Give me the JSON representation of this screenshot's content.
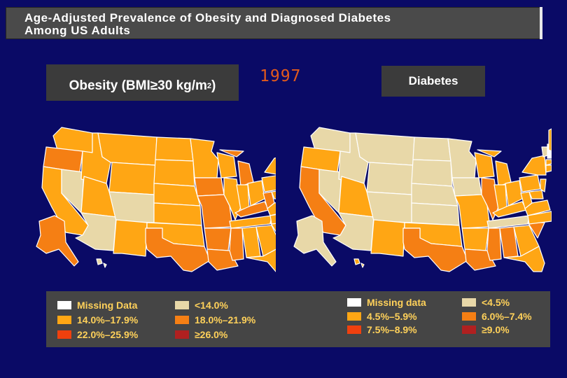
{
  "title": {
    "line1": "Age-Adjusted Prevalence of Obesity and Diagnosed Diabetes",
    "line2": "Among US Adults"
  },
  "year": "1997",
  "obesity_panel": {
    "label_prefix": "Obesity (BMI≥30 kg/m",
    "label_sup": "2",
    "label_suffix": ")",
    "legend": [
      {
        "label": "Missing Data",
        "color": "#ffffff"
      },
      {
        "label": "<14.0%",
        "color": "#e8d8a8"
      },
      {
        "label": "14.0%–17.9%",
        "color": "#ffa614"
      },
      {
        "label": "18.0%–21.9%",
        "color": "#f57f14"
      },
      {
        "label": "22.0%–25.9%",
        "color": "#f0400e"
      },
      {
        "label": "≥26.0%",
        "color": "#b02020"
      }
    ]
  },
  "diabetes_panel": {
    "label": "Diabetes",
    "legend": [
      {
        "label": "Missing data",
        "color": "#ffffff"
      },
      {
        "label": "<4.5%",
        "color": "#e8d8a8"
      },
      {
        "label": "4.5%–5.9%",
        "color": "#ffa614"
      },
      {
        "label": "6.0%–7.4%",
        "color": "#f57f14"
      },
      {
        "label": "7.5%–8.9%",
        "color": "#f0400e"
      },
      {
        "label": "≥9.0%",
        "color": "#b02020"
      }
    ]
  }
}
